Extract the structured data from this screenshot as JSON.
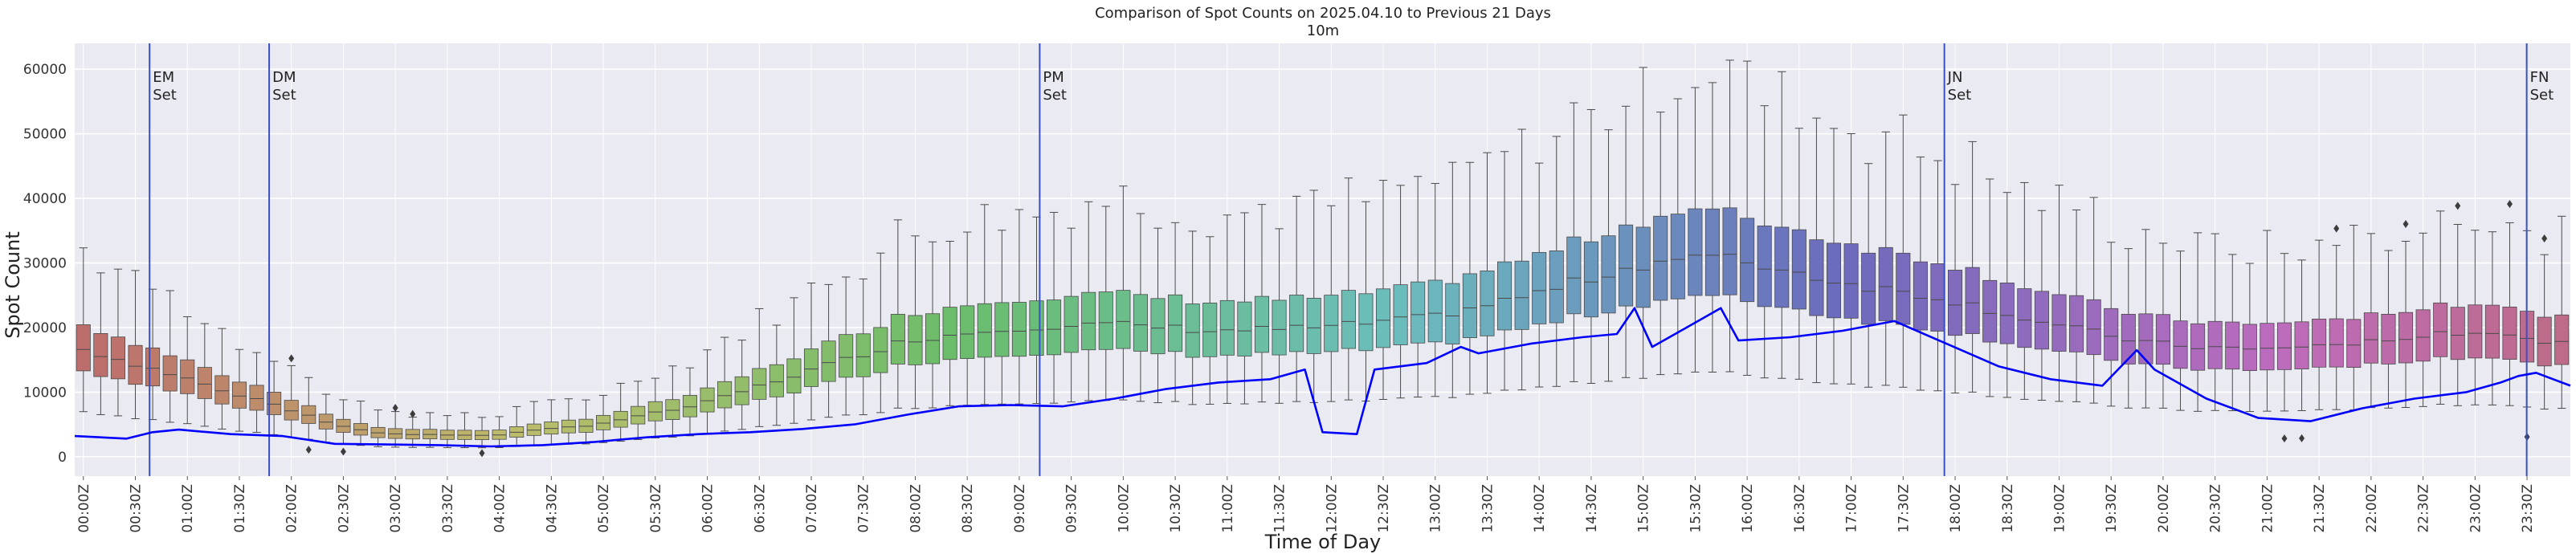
{
  "chart_data": {
    "type": "box",
    "title": "Comparison of Spot Counts on 2025.04.10 to Previous 21 Days",
    "subtitle": "10m",
    "xlabel": "Time of Day",
    "ylabel": "Spot Count",
    "ylim": [
      -3000,
      64000
    ],
    "yticks": [
      0,
      10000,
      20000,
      30000,
      40000,
      50000,
      60000
    ],
    "grid": true,
    "bin_minutes": 10,
    "xtick_labels": [
      "00:00Z",
      "00:30Z",
      "01:00Z",
      "01:30Z",
      "02:00Z",
      "02:30Z",
      "03:00Z",
      "03:30Z",
      "04:00Z",
      "04:30Z",
      "05:00Z",
      "05:30Z",
      "06:00Z",
      "06:30Z",
      "07:00Z",
      "07:30Z",
      "08:00Z",
      "08:30Z",
      "09:00Z",
      "09:30Z",
      "10:00Z",
      "10:30Z",
      "11:00Z",
      "11:30Z",
      "12:00Z",
      "12:30Z",
      "13:00Z",
      "13:30Z",
      "14:00Z",
      "14:30Z",
      "15:00Z",
      "15:30Z",
      "16:00Z",
      "16:30Z",
      "17:00Z",
      "17:30Z",
      "18:00Z",
      "18:30Z",
      "19:00Z",
      "19:30Z",
      "20:00Z",
      "20:30Z",
      "21:00Z",
      "21:30Z",
      "22:00Z",
      "22:30Z",
      "23:00Z",
      "23:30Z"
    ],
    "box_median_anchors": [
      {
        "hour": 0.0,
        "median": 17000
      },
      {
        "hour": 1.0,
        "median": 12500
      },
      {
        "hour": 2.0,
        "median": 7500
      },
      {
        "hour": 2.5,
        "median": 5000
      },
      {
        "hour": 3.0,
        "median": 3500
      },
      {
        "hour": 4.0,
        "median": 3300
      },
      {
        "hour": 5.0,
        "median": 5000
      },
      {
        "hour": 6.0,
        "median": 8000
      },
      {
        "hour": 7.0,
        "median": 13000
      },
      {
        "hour": 8.0,
        "median": 18000
      },
      {
        "hour": 9.0,
        "median": 20000
      },
      {
        "hour": 10.0,
        "median": 20500
      },
      {
        "hour": 11.0,
        "median": 19500
      },
      {
        "hour": 12.0,
        "median": 20000
      },
      {
        "hour": 13.0,
        "median": 21500
      },
      {
        "hour": 14.0,
        "median": 25000
      },
      {
        "hour": 15.0,
        "median": 29500
      },
      {
        "hour": 15.5,
        "median": 31000
      },
      {
        "hour": 16.0,
        "median": 30500
      },
      {
        "hour": 17.0,
        "median": 27000
      },
      {
        "hour": 18.0,
        "median": 24500
      },
      {
        "hour": 19.0,
        "median": 20500
      },
      {
        "hour": 20.0,
        "median": 17500
      },
      {
        "hour": 21.0,
        "median": 16500
      },
      {
        "hour": 22.0,
        "median": 17500
      },
      {
        "hour": 23.0,
        "median": 19500
      },
      {
        "hour": 24.0,
        "median": 17500
      }
    ],
    "series": [
      {
        "name": "2025.04.10",
        "color": "#0000ff",
        "points": [
          {
            "hour": 0.0,
            "value": 3200
          },
          {
            "hour": 0.5,
            "value": 2800
          },
          {
            "hour": 0.75,
            "value": 3800
          },
          {
            "hour": 1.0,
            "value": 4200
          },
          {
            "hour": 1.5,
            "value": 3500
          },
          {
            "hour": 2.0,
            "value": 3200
          },
          {
            "hour": 2.5,
            "value": 2000
          },
          {
            "hour": 3.0,
            "value": 1900
          },
          {
            "hour": 3.5,
            "value": 1800
          },
          {
            "hour": 4.0,
            "value": 1600
          },
          {
            "hour": 4.5,
            "value": 1800
          },
          {
            "hour": 5.0,
            "value": 2300
          },
          {
            "hour": 5.5,
            "value": 3000
          },
          {
            "hour": 6.0,
            "value": 3500
          },
          {
            "hour": 6.5,
            "value": 3800
          },
          {
            "hour": 7.0,
            "value": 4300
          },
          {
            "hour": 7.5,
            "value": 5000
          },
          {
            "hour": 8.0,
            "value": 6500
          },
          {
            "hour": 8.5,
            "value": 7800
          },
          {
            "hour": 9.0,
            "value": 8000
          },
          {
            "hour": 9.5,
            "value": 7800
          },
          {
            "hour": 10.0,
            "value": 9000
          },
          {
            "hour": 10.5,
            "value": 10500
          },
          {
            "hour": 11.0,
            "value": 11500
          },
          {
            "hour": 11.5,
            "value": 12000
          },
          {
            "hour": 11.83,
            "value": 13500
          },
          {
            "hour": 12.0,
            "value": 3800
          },
          {
            "hour": 12.33,
            "value": 3500
          },
          {
            "hour": 12.5,
            "value": 13500
          },
          {
            "hour": 13.0,
            "value": 14500
          },
          {
            "hour": 13.33,
            "value": 17000
          },
          {
            "hour": 13.5,
            "value": 16000
          },
          {
            "hour": 14.0,
            "value": 17500
          },
          {
            "hour": 14.5,
            "value": 18500
          },
          {
            "hour": 14.83,
            "value": 19000
          },
          {
            "hour": 15.0,
            "value": 23000
          },
          {
            "hour": 15.17,
            "value": 17000
          },
          {
            "hour": 15.5,
            "value": 20000
          },
          {
            "hour": 15.83,
            "value": 23000
          },
          {
            "hour": 16.0,
            "value": 18000
          },
          {
            "hour": 16.5,
            "value": 18500
          },
          {
            "hour": 17.0,
            "value": 19500
          },
          {
            "hour": 17.5,
            "value": 21000
          },
          {
            "hour": 18.0,
            "value": 17500
          },
          {
            "hour": 18.5,
            "value": 14000
          },
          {
            "hour": 19.0,
            "value": 12000
          },
          {
            "hour": 19.5,
            "value": 11000
          },
          {
            "hour": 19.83,
            "value": 16500
          },
          {
            "hour": 20.0,
            "value": 13500
          },
          {
            "hour": 20.5,
            "value": 9000
          },
          {
            "hour": 21.0,
            "value": 6000
          },
          {
            "hour": 21.5,
            "value": 5500
          },
          {
            "hour": 22.0,
            "value": 7500
          },
          {
            "hour": 22.5,
            "value": 9000
          },
          {
            "hour": 23.0,
            "value": 10000
          },
          {
            "hour": 23.33,
            "value": 11500
          },
          {
            "hour": 23.5,
            "value": 12500
          },
          {
            "hour": 23.67,
            "value": 13000
          },
          {
            "hour": 24.0,
            "value": 11000
          }
        ]
      }
    ],
    "annotations": [
      {
        "line1": "EM",
        "line2": "Set",
        "hour": 0.72
      },
      {
        "line1": "DM",
        "line2": "Set",
        "hour": 1.87
      },
      {
        "line1": "PM",
        "line2": "Set",
        "hour": 9.28
      },
      {
        "line1": "JN",
        "line2": "Set",
        "hour": 17.98
      },
      {
        "line1": "FN",
        "line2": "Set",
        "hour": 23.58
      }
    ],
    "colors": {
      "background": "#eaeaf2",
      "grid": "#ffffff",
      "vline": "#3a4fc6",
      "today_line": "#0000ff",
      "box_edge": "#4a4a4a",
      "hue_start": 0,
      "hue_end": 340
    }
  }
}
